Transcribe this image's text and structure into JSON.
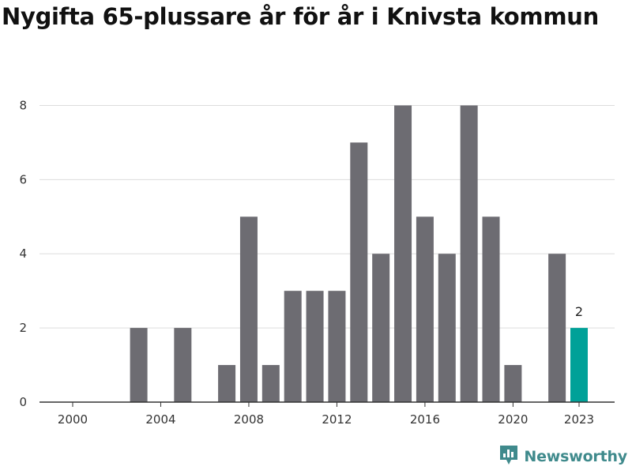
{
  "title": "Nygifta 65-plussare år för år i Knivsta kommun",
  "brand": {
    "name": "Newsworthy",
    "icon": "newsworthy-logo-icon",
    "color": "#3f8a8c"
  },
  "colors": {
    "bar": "#6d6c72",
    "highlight": "#00a198",
    "grid": "#dddddd",
    "axis": "#333333"
  },
  "chart_data": {
    "type": "bar",
    "title": "Nygifta 65-plussare år för år i Knivsta kommun",
    "xlabel": "",
    "ylabel": "",
    "categories": [
      2000,
      2001,
      2002,
      2003,
      2004,
      2005,
      2006,
      2007,
      2008,
      2009,
      2010,
      2011,
      2012,
      2013,
      2014,
      2015,
      2016,
      2017,
      2018,
      2019,
      2020,
      2021,
      2022,
      2023
    ],
    "values": [
      0,
      0,
      0,
      2,
      0,
      2,
      0,
      1,
      5,
      1,
      3,
      3,
      3,
      7,
      4,
      8,
      5,
      4,
      8,
      5,
      1,
      0,
      4,
      2
    ],
    "highlight": {
      "category": 2023,
      "value": 2,
      "label": "2"
    },
    "x_ticks": [
      "2000",
      "2004",
      "2008",
      "2012",
      "2016",
      "2020",
      "2023"
    ],
    "y_ticks": [
      0,
      2,
      4,
      6,
      8
    ],
    "ylim": [
      0,
      8.5
    ],
    "grid": true,
    "legend": "none"
  }
}
